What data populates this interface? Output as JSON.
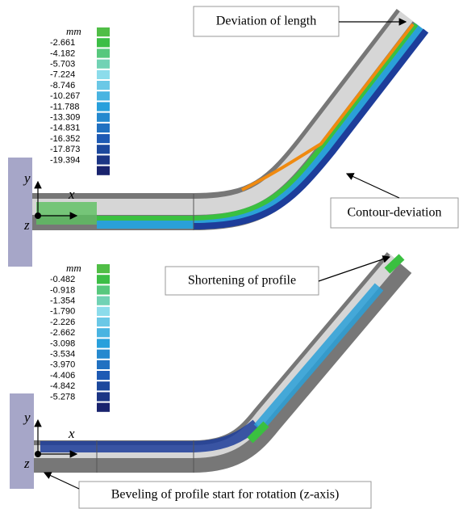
{
  "panels": [
    {
      "legend": {
        "unit": "mm",
        "values": [
          "-2.661",
          "-4.182",
          "-5.703",
          "-7.224",
          "-8.746",
          "-10.267",
          "-11.788",
          "-13.309",
          "-14.831",
          "-16.352",
          "-17.873",
          "-19.394"
        ]
      },
      "axes": {
        "x": "x",
        "y": "y",
        "z": "z"
      },
      "annotations": [
        "Deviation of length",
        "Contour-deviation"
      ]
    },
    {
      "legend": {
        "unit": "mm",
        "values": [
          "-0.482",
          "-0.918",
          "-1.354",
          "-1.790",
          "-2.226",
          "-2.662",
          "-3.098",
          "-3.534",
          "-3.970",
          "-4.406",
          "-4.842",
          "-5.278"
        ]
      },
      "axes": {
        "x": "x",
        "y": "y",
        "z": "z"
      },
      "annotations": [
        "Shortening of profile",
        "Beveling of profile start for rotation (z-axis)"
      ]
    }
  ]
}
